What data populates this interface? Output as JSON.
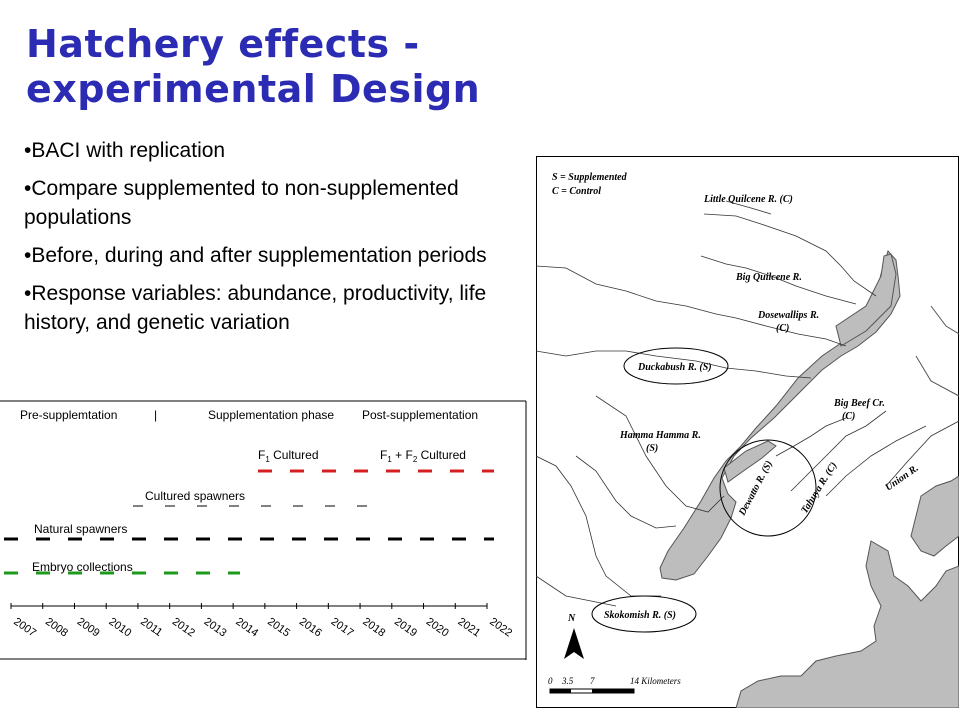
{
  "title": {
    "line1": "Hatchery effects -",
    "line2": "experimental Design"
  },
  "bullets": [
    "•BACI with replication",
    "•Compare supplemented to non-supplemented populations",
    "•Before, during and after supplementation periods",
    "•Response variables:  abundance, productivity, life history, and genetic variation"
  ],
  "timeline": {
    "phases": {
      "pre": "Pre-supplemtation",
      "divider": "|",
      "during": "Supplementation phase",
      "post": "Post-supplementation"
    },
    "rows": {
      "f1": "F1 Cultured",
      "f1f2": "F1 + F2 Cultured",
      "cultured_spawners": "Cultured spawners",
      "natural_spawners": "Natural spawners",
      "embryo": "Embryo collections"
    },
    "years": [
      "2007",
      "2008",
      "2009",
      "2010",
      "2011",
      "2012",
      "2013",
      "2014",
      "2015",
      "2016",
      "2017",
      "2018",
      "2019",
      "2020",
      "2021",
      "2022"
    ],
    "colors": {
      "red": "#d42020",
      "green": "#1c9a1c",
      "black": "#000000"
    }
  },
  "map": {
    "legend": {
      "s": "S = Supplemented",
      "c": "C = Control"
    },
    "rivers": {
      "little_quilcene": "Little Quilcene R. (C)",
      "big_quilcene": "Big Quilcene R.",
      "dosewallips_1": "Dosewallips R.",
      "dosewallips_2": "(C)",
      "duckabush": "Duckabush R. (S)",
      "big_beef_1": "Big Beef Cr.",
      "big_beef_2": "(C)",
      "hamma_1": "Hamma Hamma R.",
      "hamma_2": "(S)",
      "dewatto": "Dewatto R. (S)",
      "tahuya": "Tahuya R. (C)",
      "union": "Union R.",
      "skokomish": "Skokomish R. (S)"
    },
    "north": "N",
    "scale": {
      "t0": "0",
      "t1": "3.5",
      "t2": "7",
      "t3": "14 Kilometers"
    }
  }
}
